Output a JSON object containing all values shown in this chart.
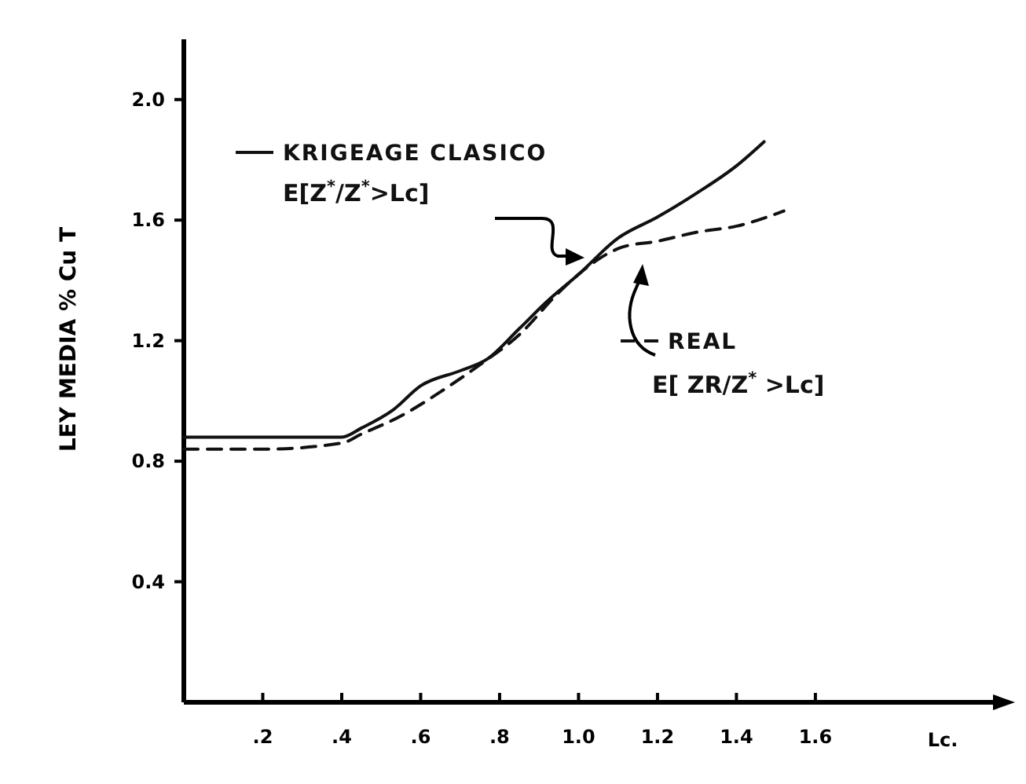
{
  "chart_data": {
    "type": "line",
    "xlabel": "Lc.",
    "ylabel": "LEY MEDIA  % Cu T",
    "xlim": [
      0,
      2.05
    ],
    "ylim": [
      0,
      2.2
    ],
    "xticks": [
      {
        "value": 0.2,
        "label": ".2"
      },
      {
        "value": 0.4,
        "label": ".4"
      },
      {
        "value": 0.6,
        "label": ".6"
      },
      {
        "value": 0.8,
        "label": ".8"
      },
      {
        "value": 1.0,
        "label": "1.0"
      },
      {
        "value": 1.2,
        "label": "1.2"
      },
      {
        "value": 1.4,
        "label": "1.4"
      },
      {
        "value": 1.6,
        "label": "1.6"
      }
    ],
    "yticks": [
      {
        "value": 0.4,
        "label": "0.4"
      },
      {
        "value": 0.8,
        "label": "0.8"
      },
      {
        "value": 1.2,
        "label": "1.2"
      },
      {
        "value": 1.6,
        "label": "1.6"
      },
      {
        "value": 2.0,
        "label": "2.0"
      }
    ],
    "grid": false,
    "marker": "none",
    "legend": "top",
    "series": [
      {
        "name": "KRIGEAGE CLASICO",
        "color": "#111111",
        "line_style": "solid",
        "x": [
          0,
          0.2,
          0.4,
          0.45,
          0.53,
          0.6,
          0.7,
          0.77,
          0.85,
          0.92,
          1.0,
          1.1,
          1.2,
          1.3,
          1.4,
          1.47
        ],
        "values": [
          0.88,
          0.88,
          0.88,
          0.91,
          0.97,
          1.05,
          1.1,
          1.14,
          1.24,
          1.33,
          1.42,
          1.54,
          1.61,
          1.69,
          1.78,
          1.86
        ]
      },
      {
        "name": "REAL",
        "color": "#111111",
        "line_style": "dashed",
        "x": [
          0,
          0.2,
          0.4,
          0.45,
          0.55,
          0.65,
          0.75,
          0.85,
          0.95,
          1.0,
          1.05,
          1.11,
          1.2,
          1.3,
          1.4,
          1.52
        ],
        "values": [
          0.84,
          0.84,
          0.86,
          0.89,
          0.95,
          1.03,
          1.12,
          1.22,
          1.36,
          1.42,
          1.47,
          1.51,
          1.53,
          1.56,
          1.58,
          1.63
        ]
      }
    ],
    "annotations": [
      "E[Z$^{*}$/Z$^{*}$>Lc]",
      "E[ ZR/Z$^{*}$ >Lc]"
    ]
  }
}
